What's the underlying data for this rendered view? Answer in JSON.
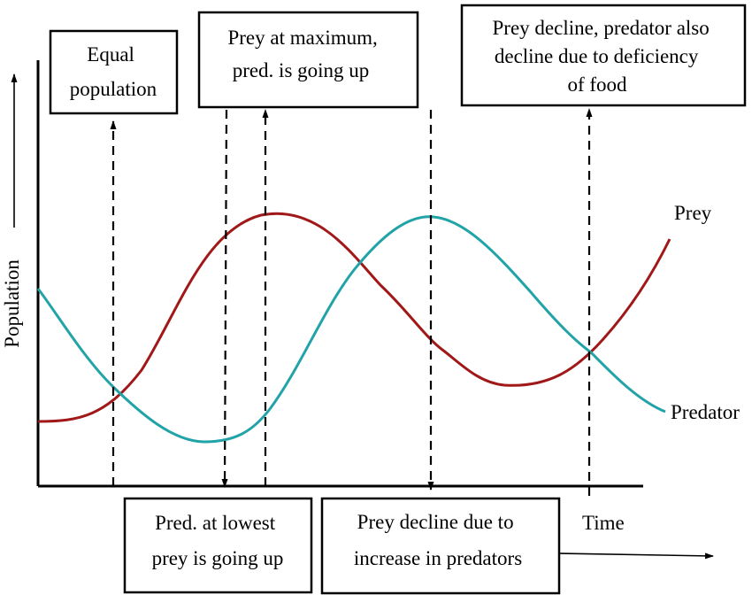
{
  "axes": {
    "y_label": "Population",
    "x_label": "Time"
  },
  "series": {
    "prey": {
      "label": "Prey",
      "color": "#a01818"
    },
    "predator": {
      "label": "Predator",
      "color": "#22a3a8"
    }
  },
  "annotations": {
    "equal_population": [
      "Equal",
      "population"
    ],
    "prey_at_maximum": [
      "Prey at maximum,",
      "pred. is going up"
    ],
    "prey_decline_predator": [
      "Prey decline, predator also",
      "decline due to deficiency",
      "of food"
    ],
    "pred_at_lowest": [
      "Pred. at lowest",
      "prey is going up"
    ],
    "prey_decline_increase": [
      "Prey decline due to",
      "increase in predators"
    ]
  }
}
